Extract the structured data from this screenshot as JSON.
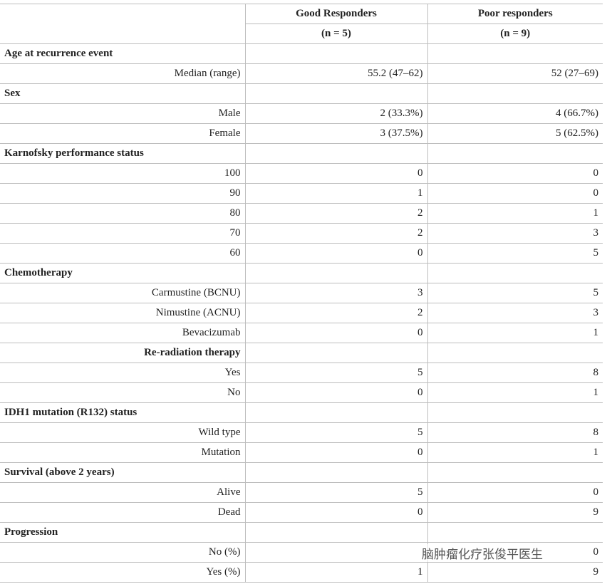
{
  "table": {
    "header": [
      [
        "Good Responders",
        "Poor responders"
      ],
      [
        "(n = 5)",
        "(n = 9)"
      ]
    ],
    "rows": [
      [
        "Age at recurrence event"
      ],
      [
        "Median (range)",
        "55.2 (47–62)",
        "52 (27–69)"
      ],
      [
        "Sex"
      ],
      [
        "Male",
        "2 (33.3%)",
        "4 (66.7%)"
      ],
      [
        "Female",
        "3 (37.5%)",
        "5 (62.5%)"
      ],
      [
        "Karnofsky performance status"
      ],
      [
        "100",
        "0",
        "0"
      ],
      [
        "90",
        "1",
        "0"
      ],
      [
        "80",
        "2",
        "1"
      ],
      [
        "70",
        "2",
        "3"
      ],
      [
        "60",
        "0",
        "5"
      ],
      [
        "Chemotherapy"
      ],
      [
        "Carmustine (BCNU)",
        "3",
        "5"
      ],
      [
        "Nimustine (ACNU)",
        "2",
        "3"
      ],
      [
        "Bevacizumab",
        "0",
        "1"
      ],
      [
        "Re-radiation therapy"
      ],
      [
        "Yes",
        "5",
        "8"
      ],
      [
        "No",
        "0",
        "1"
      ],
      [
        "IDH1 mutation (R132) status"
      ],
      [
        "Wild type",
        "5",
        "8"
      ],
      [
        "Mutation",
        "0",
        "1"
      ],
      [
        "Survival (above 2 years)"
      ],
      [
        "Alive",
        "5",
        "0"
      ],
      [
        "Dead",
        "0",
        "9"
      ],
      [
        "Progression"
      ],
      [
        "No (%)",
        "",
        "0"
      ],
      [
        "Yes (%)",
        "1",
        "9"
      ]
    ]
  },
  "watermark": {
    "text": "脑肿瘤化疗张俊平医生"
  }
}
